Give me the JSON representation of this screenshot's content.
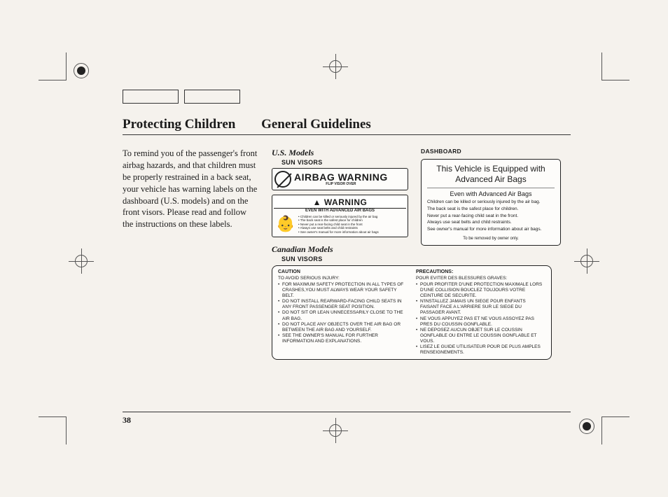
{
  "page_number": "38",
  "title": {
    "part1": "Protecting Children",
    "part2": "General Guidelines"
  },
  "intro_text": "To remind you of the passenger's front airbag hazards, and that children must be properly restrained in a back seat, your vehicle has warning labels on the dashboard (U.S. models) and on the front visors. Please read and follow the instructions on these labels.",
  "us_models": {
    "heading": "U.S. Models",
    "sun_visors": "SUN VISORS",
    "airbag_warning": {
      "title": "AIRBAG WARNING",
      "sub": "FLIP VISOR OVER"
    },
    "warning": {
      "head": "WARNING",
      "title": "EVEN WITH ADVANCED AIR BAGS",
      "bullets": [
        "Children can be killed or seriously injured by the air bag",
        "The back seat is the safest place for children",
        "Never put a rear-facing child seat in the front",
        "Always use seat belts and child restraints",
        "See owner's manual for more information about air bags"
      ]
    }
  },
  "canadian": {
    "heading": "Canadian Models",
    "sun_visors": "SUN VISORS",
    "caution": {
      "head": "CAUTION",
      "intro": "TO AVOID SERIOUS INJURY:",
      "items": [
        "FOR MAXIMUM SAFETY PROTECTION IN ALL TYPES OF CRASHES,YOU MUST ALWAYS WEAR YOUR SAFETY BELT.",
        "DO NOT INSTALL REARWARD-FACING CHILD SEATS IN ANY FRONT PASSENGER SEAT POSITION.",
        "DO NOT SIT OR LEAN UNNECESSARILY CLOSE TO THE AIR BAG.",
        "DO NOT PLACE ANY OBJECTS OVER THE AIR BAG OR BETWEEN THE AIR BAG AND YOURSELF.",
        "SEE THE OWNER'S MANUAL FOR FURTHER INFORMATION AND EXPLANATIONS."
      ]
    },
    "precautions": {
      "head": "PRECAUTIONS:",
      "intro": "POUR EVITER DES BLESSURES GRAVES:",
      "items": [
        "POUR PROFITER D'UNE PROTECTION MAXIMALE LORS D'UNE COLLISION BOUCLEZ TOUJOURS VOTRE CEINTURE DE SECURITE.",
        "N'INSTALLEZ JAMAIS UN SIEGE POUR ENFANTS FAISANT FACE A L'ARRIERE SUR LE SIEGE DU PASSAGER AVANT.",
        "NE VOUS APPUYEZ PAS ET NE VOUS ASSOYEZ PAS PRES DU COUSSIN GONFLABLE.",
        "NE DEPOSEZ AUCUN OBJET SUR LE COUSSIN GONFLABLE OU ENTRE LE COUSSIN GONFLABLE ET VOUS.",
        "LISEZ LE GUIDE UTILISATEUR POUR DE PLUS AMPLES RENSEIGNEMENTS."
      ]
    }
  },
  "dashboard": {
    "heading": "DASHBOARD",
    "title": "This Vehicle is Equipped with Advanced Air Bags",
    "sub": "Even with Advanced Air Bags",
    "body": [
      "Children can be killed or seriously injured by the air bag.",
      "The back seat is the safest place for children.",
      "Never put a rear-facing child seat in the front.",
      "Always use seat belts and child restraints.",
      "See owner's manual for more information about air bags."
    ],
    "footer": "To be removed by owner only."
  }
}
